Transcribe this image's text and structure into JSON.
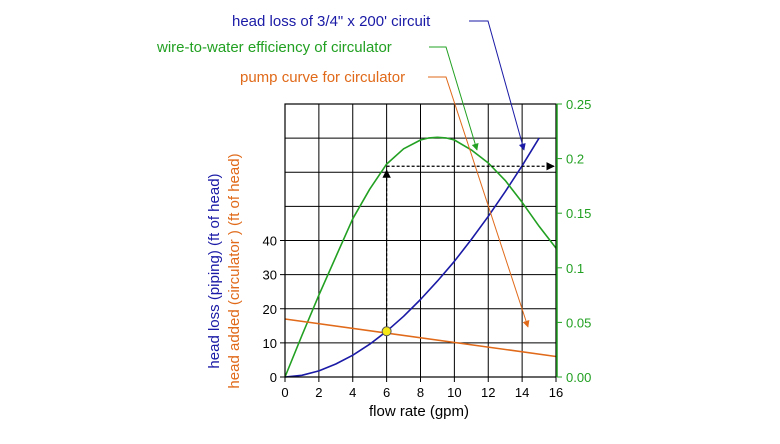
{
  "chart_data": {
    "type": "line",
    "title": "",
    "x": [
      0,
      2,
      4,
      6,
      8,
      10,
      12,
      14,
      15
    ],
    "xlabel": "flow rate (gpm)",
    "xlim": [
      0,
      16
    ],
    "xticks": [
      "0",
      "2",
      "4",
      "6",
      "8",
      "10",
      "12",
      "14",
      "16"
    ],
    "ylabel_left_1": "head loss (piping) (ft of head)",
    "ylabel_left_2": "head added (circulator ) (ft of head)",
    "ylim_left": [
      0,
      80
    ],
    "yticks_left": [
      "0",
      "10",
      "20",
      "30",
      "40"
    ],
    "ylim_right": [
      0,
      0.25
    ],
    "yticks_right": [
      "0.00",
      "0.05",
      "0.1",
      "0.15",
      "0.2",
      "0.25"
    ],
    "grid": true,
    "series": [
      {
        "name": "head loss of 3/4\" x 200' circuit",
        "axis": "left",
        "color": "#1a1aa6",
        "x": [
          0,
          1,
          2,
          3,
          4,
          5,
          6,
          7,
          8,
          9,
          10,
          11,
          12,
          13,
          14,
          15
        ],
        "values": [
          0,
          0.5,
          1.8,
          3.8,
          6.4,
          9.6,
          13.4,
          17.8,
          22.7,
          28.1,
          33.9,
          40.3,
          47.1,
          54.3,
          61.9,
          70.0
        ]
      },
      {
        "name": "wire-to-water efficiency of circulator",
        "axis": "right",
        "color": "#22a022",
        "x": [
          0,
          1,
          2,
          3,
          4,
          5,
          6,
          7,
          8,
          8.5,
          9,
          9.5,
          10,
          11,
          12,
          13,
          14,
          15,
          16
        ],
        "values": [
          0,
          0.038,
          0.075,
          0.11,
          0.145,
          0.172,
          0.195,
          0.209,
          0.217,
          0.219,
          0.2195,
          0.219,
          0.217,
          0.208,
          0.196,
          0.18,
          0.16,
          0.138,
          0.118
        ]
      },
      {
        "name": "pump curve for circulator",
        "axis": "left",
        "color": "#e06a1a",
        "x": [
          0,
          16
        ],
        "values": [
          17,
          6
        ]
      }
    ],
    "operating_point": {
      "x": 6,
      "y": 13.4
    },
    "reference_efficiency": 0.193
  }
}
